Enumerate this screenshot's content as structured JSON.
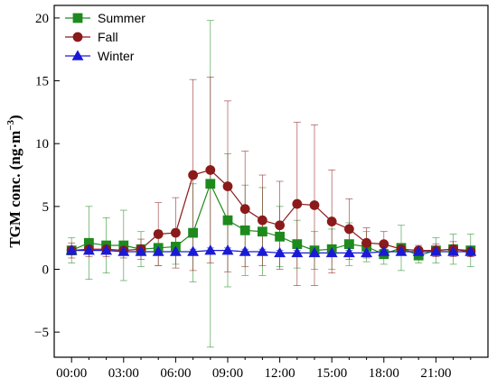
{
  "chart_data": {
    "type": "line",
    "ylabel_main": "TGM conc. (ng·m",
    "ylabel_sup": "−3",
    "ylabel_close": ")",
    "xlabel": "",
    "ylim": [
      -7,
      21
    ],
    "xlim": [
      -1,
      24
    ],
    "yticks": [
      -5,
      0,
      5,
      10,
      15,
      20
    ],
    "ytick_labels": [
      "−5",
      "0",
      "5",
      "10",
      "15",
      "20"
    ],
    "xticks": [
      0,
      3,
      6,
      9,
      12,
      15,
      18,
      21
    ],
    "xtick_labels": [
      "00:00",
      "03:00",
      "06:00",
      "09:00",
      "12:00",
      "15:00",
      "18:00",
      "21:00"
    ],
    "legend_position": "top-left",
    "grid": false,
    "x": [
      0,
      1,
      2,
      3,
      4,
      5,
      6,
      7,
      8,
      9,
      10,
      11,
      12,
      13,
      14,
      15,
      16,
      17,
      18,
      19,
      20,
      21,
      22,
      23
    ],
    "series": [
      {
        "name": "Summer",
        "color": "#1e8a1e",
        "marker": "square",
        "values": [
          1.5,
          2.1,
          1.9,
          1.9,
          1.6,
          1.7,
          1.8,
          2.9,
          6.8,
          3.9,
          3.1,
          3.0,
          2.6,
          2.0,
          1.5,
          1.6,
          2.0,
          1.8,
          1.2,
          1.7,
          1.1,
          1.5,
          1.6,
          1.5
        ],
        "err": [
          1.0,
          2.9,
          2.2,
          2.8,
          1.4,
          1.4,
          1.4,
          3.9,
          13.0,
          5.3,
          3.6,
          3.5,
          2.4,
          1.9,
          1.5,
          1.6,
          1.7,
          1.2,
          0.8,
          1.8,
          0.6,
          1.0,
          1.2,
          1.3
        ]
      },
      {
        "name": "Fall",
        "color": "#8b1a1a",
        "marker": "circle",
        "values": [
          1.5,
          1.6,
          1.6,
          1.5,
          1.6,
          2.8,
          2.9,
          7.5,
          7.9,
          6.6,
          4.8,
          3.9,
          3.5,
          5.2,
          5.1,
          3.8,
          3.2,
          2.1,
          2.0,
          1.6,
          1.5,
          1.5,
          1.6,
          1.4
        ],
        "err": [
          0.6,
          0.6,
          0.6,
          0.6,
          0.8,
          2.5,
          2.8,
          7.6,
          7.4,
          6.8,
          4.6,
          3.6,
          3.5,
          6.5,
          6.4,
          4.1,
          2.4,
          1.2,
          1.0,
          0.4,
          0.4,
          0.5,
          0.6,
          0.4
        ]
      },
      {
        "name": "Winter",
        "color": "#1a1ad6",
        "marker": "triangle",
        "values": [
          1.5,
          1.5,
          1.5,
          1.4,
          1.4,
          1.4,
          1.4,
          1.4,
          1.5,
          1.5,
          1.4,
          1.4,
          1.3,
          1.3,
          1.3,
          1.3,
          1.3,
          1.3,
          1.4,
          1.4,
          1.4,
          1.4,
          1.4,
          1.4
        ],
        "err": [
          0.2,
          0.2,
          0.2,
          0.2,
          0.2,
          0.2,
          0.2,
          0.2,
          0.2,
          0.2,
          0.2,
          0.2,
          0.2,
          0.2,
          0.2,
          0.2,
          0.2,
          0.2,
          0.2,
          0.2,
          0.2,
          0.2,
          0.2,
          0.2
        ]
      }
    ]
  }
}
